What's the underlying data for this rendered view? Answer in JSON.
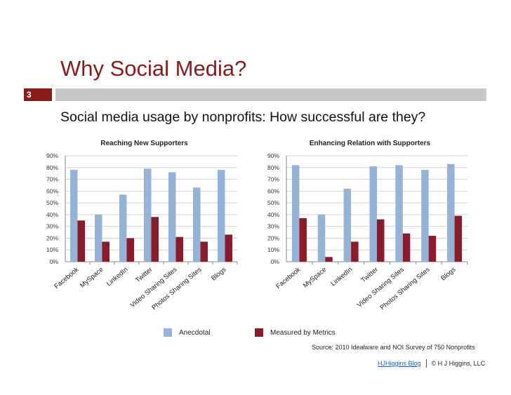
{
  "slide": {
    "title": "Why Social Media?",
    "number": "3",
    "subtitle": "Social media usage by nonprofits: How successful are they?",
    "source": "Source: 2010 Idealware and NOI Survey of 750 Nonprofits",
    "footer_link": "HJHiggins Blog",
    "footer_copyright": "© H J Higgins, LLC",
    "colors": {
      "accent": "#8b1a1a",
      "anecdotal": "#95b3d7",
      "metrics": "#8b1a2b"
    }
  },
  "legend": [
    "Anecdotal",
    "Measured by Metrics"
  ],
  "chart_data": [
    {
      "type": "bar",
      "title": "Reaching New Supporters",
      "categories": [
        "Facebook",
        "MySpace",
        "LinkedIn",
        "Twitter",
        "Video Sharing Sites",
        "Photos Sharing Sites",
        "Blogs"
      ],
      "series": [
        {
          "name": "Anecdotal",
          "values": [
            78,
            40,
            57,
            79,
            76,
            63,
            78
          ]
        },
        {
          "name": "Measured by Metrics",
          "values": [
            35,
            17,
            20,
            38,
            21,
            17,
            23
          ]
        }
      ],
      "yticks": [
        "0%",
        "10%",
        "20%",
        "30%",
        "40%",
        "50%",
        "60%",
        "70%",
        "80%",
        "90%"
      ],
      "ylim": [
        0,
        90
      ],
      "grid": true,
      "legend_position": "bottom"
    },
    {
      "type": "bar",
      "title": "Enhancing Relation with Supporters",
      "categories": [
        "Facebook",
        "MySpace",
        "LinkedIn",
        "Twitter",
        "Video Sharing Sites",
        "Photos Sharing Sites",
        "Blogs"
      ],
      "series": [
        {
          "name": "Anecdotal",
          "values": [
            82,
            40,
            62,
            81,
            82,
            78,
            83
          ]
        },
        {
          "name": "Measured by Metrics",
          "values": [
            37,
            4,
            17,
            36,
            24,
            22,
            39
          ]
        }
      ],
      "yticks": [
        "0%",
        "10%",
        "20%",
        "30%",
        "40%",
        "50%",
        "60%",
        "70%",
        "80%",
        "90%"
      ],
      "ylim": [
        0,
        90
      ],
      "grid": true,
      "legend_position": "bottom"
    }
  ]
}
